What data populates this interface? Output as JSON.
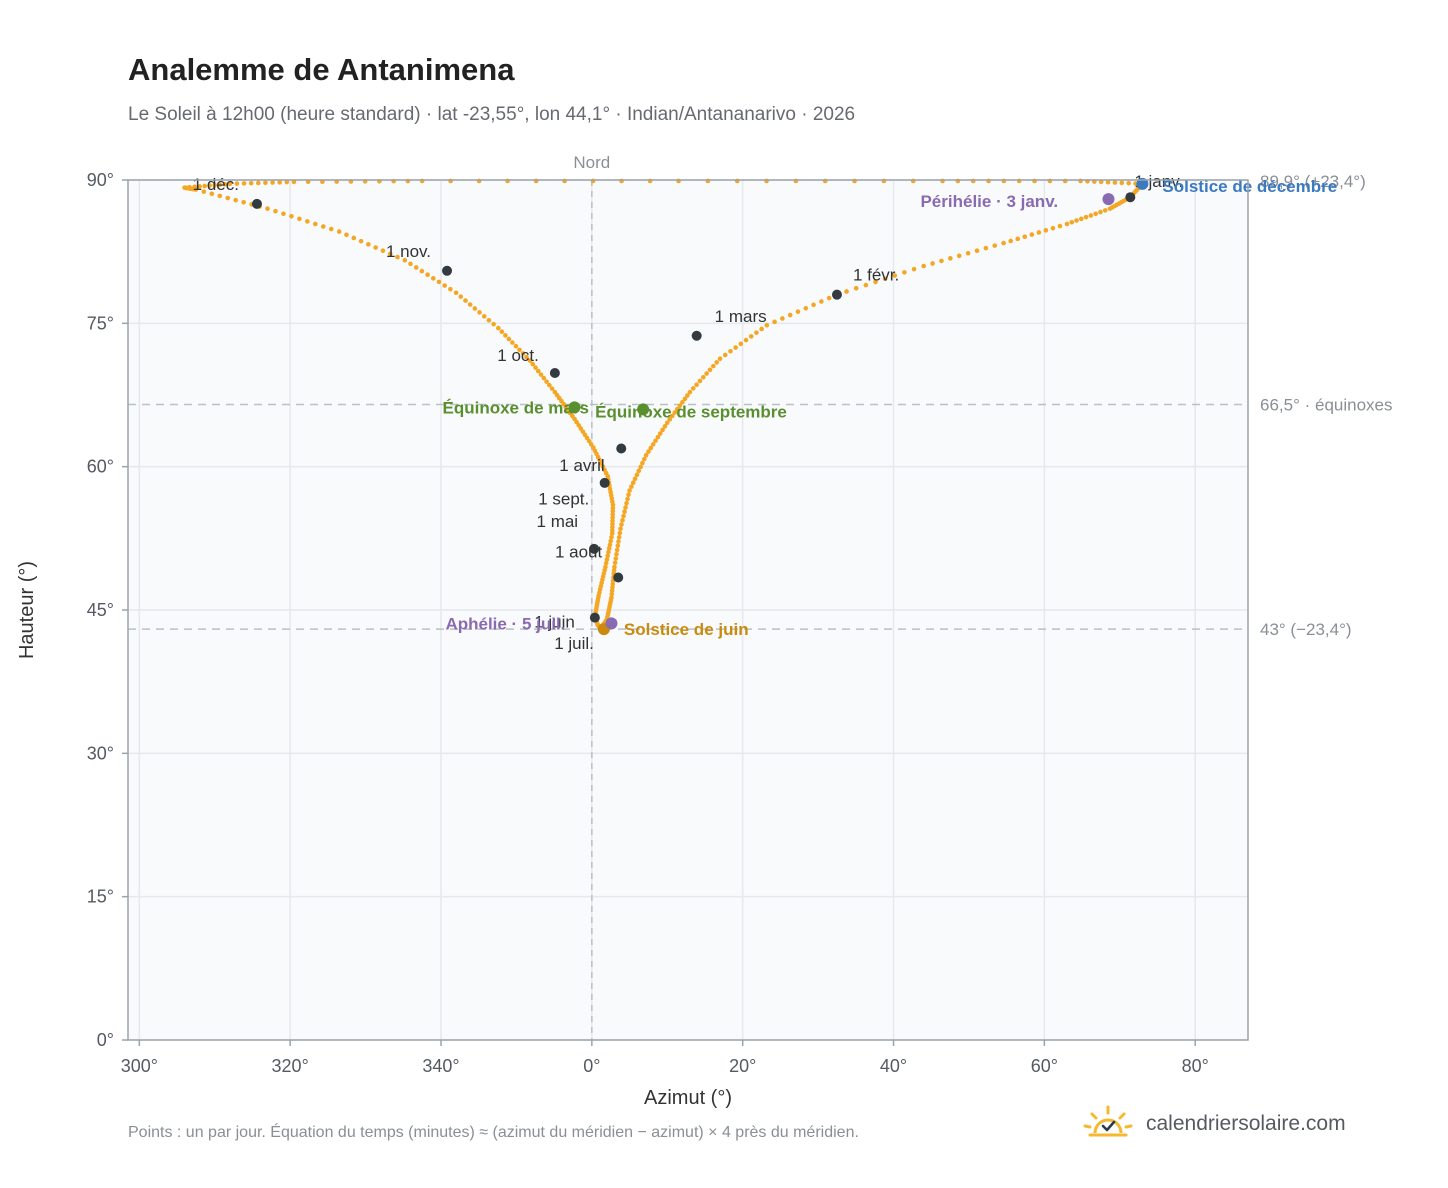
{
  "header": {
    "title": "Analemme de Antanimena",
    "subtitle": "Le Soleil à 12h00 (heure standard) · lat -23,55°, lon 44,1° · Indian/Antananarivo · 2026"
  },
  "footer": {
    "note": "Points : un par jour. Équation du temps (minutes) ≈ (azimut du méridien − azimut) × 4 près du méridien.",
    "brand": "calendriersolaire.com",
    "brand_icon": "sun-logo-icon"
  },
  "colors": {
    "curve": "#f5a623",
    "month_dot": "#333a40",
    "equinox": "#5a8f2e",
    "solstice_june": "#c98a0e",
    "solstice_dec": "#3b7ac0",
    "apsis": "#8a6ab0",
    "grid": "#e5e8ec",
    "plot_bg": "#f8fafc",
    "axis": "#9aa3ad",
    "reference": "#b8c0c8"
  },
  "chart_data": {
    "type": "scatter",
    "title": "Analemme de Antanimena",
    "xlabel": "Azimut (°)",
    "ylabel": "Hauteur (°)",
    "x_ticks": [
      "300°",
      "320°",
      "340°",
      "0°",
      "20°",
      "40°",
      "60°",
      "80°"
    ],
    "y_ticks": [
      "0°",
      "15°",
      "30°",
      "45°",
      "60°",
      "75°",
      "90°"
    ],
    "x_tick_values": [
      300,
      320,
      340,
      360,
      380,
      400,
      420,
      440
    ],
    "y_tick_values": [
      0,
      15,
      30,
      45,
      60,
      75,
      90
    ],
    "xlim": [
      298.5,
      447
    ],
    "ylim": [
      0,
      90
    ],
    "grid": true,
    "north_line": {
      "azimuth": 360,
      "label": "Nord"
    },
    "reference_lines": [
      {
        "altitude": 66.5,
        "label": "66,5° · équinoxes"
      },
      {
        "altitude": 43.0,
        "label": "43° (−23,4°)"
      },
      {
        "altitude": 89.9,
        "label": "89,9° (+23,4°)"
      }
    ],
    "series": [
      {
        "kind": "daily_path",
        "points": [
          [
            433.0,
            89.6
          ],
          [
            431.4,
            88.2
          ],
          [
            428.7,
            87.0
          ],
          [
            423.0,
            85.4
          ],
          [
            414.6,
            83.4
          ],
          [
            404.0,
            81.0
          ],
          [
            392.5,
            78.0
          ],
          [
            383.2,
            74.8
          ],
          [
            377.0,
            71.3
          ],
          [
            373.0,
            67.8
          ],
          [
            370.0,
            64.6
          ],
          [
            367.2,
            61.2
          ],
          [
            365.0,
            57.5
          ],
          [
            363.8,
            53.5
          ],
          [
            363.0,
            49.5
          ],
          [
            362.6,
            46.3
          ],
          [
            362.0,
            44.0
          ],
          [
            361.2,
            43.1
          ],
          [
            360.8,
            43.4
          ],
          [
            360.4,
            44.3
          ],
          [
            360.9,
            46.5
          ],
          [
            361.8,
            49.5
          ],
          [
            362.7,
            53.0
          ],
          [
            362.8,
            56.0
          ],
          [
            362.1,
            59.0
          ],
          [
            360.2,
            62.0
          ],
          [
            357.7,
            65.0
          ],
          [
            355.1,
            67.8
          ],
          [
            351.8,
            71.1
          ],
          [
            347.6,
            74.5
          ],
          [
            342.0,
            78.2
          ],
          [
            335.2,
            81.6
          ],
          [
            326.5,
            84.6
          ],
          [
            317.0,
            87.0
          ],
          [
            307.5,
            89.0
          ],
          [
            306.0,
            89.2
          ],
          [
            312.0,
            89.6
          ],
          [
            320.5,
            89.8
          ],
          [
            337.5,
            89.9
          ],
          [
            371.5,
            89.9
          ],
          [
            406.5,
            89.9
          ],
          [
            424.8,
            89.9
          ],
          [
            433.0,
            89.6
          ]
        ]
      }
    ],
    "month_markers": [
      {
        "label": "1 janv.",
        "azimuth": 431.4,
        "altitude": 88.2
      },
      {
        "label": "1 févr.",
        "azimuth": 392.5,
        "altitude": 78.0
      },
      {
        "label": "1 mars",
        "azimuth": 373.9,
        "altitude": 73.7
      },
      {
        "label": "1 avril",
        "azimuth": 361.7,
        "altitude": 58.3
      },
      {
        "label": "1 mai",
        "azimuth": 360.3,
        "altitude": 51.4
      },
      {
        "label": "1 juin",
        "azimuth": 360.4,
        "altitude": 44.2
      },
      {
        "label": "1 juil.",
        "azimuth": 361.6,
        "altitude": 43.0
      },
      {
        "label": "1 août",
        "azimuth": 363.5,
        "altitude": 48.4
      },
      {
        "label": "1 sept.",
        "azimuth": 363.9,
        "altitude": 61.9
      },
      {
        "label": "1 oct.",
        "azimuth": 355.1,
        "altitude": 69.8
      },
      {
        "label": "1 nov.",
        "azimuth": 340.8,
        "altitude": 80.5
      },
      {
        "label": "1 déc.",
        "azimuth": 315.6,
        "altitude": 87.5
      }
    ],
    "events": [
      {
        "label": "Équinoxe de mars",
        "azimuth": 357.7,
        "altitude": 66.2,
        "color_key": "equinox"
      },
      {
        "label": "Équinoxe de septembre",
        "azimuth": 366.8,
        "altitude": 66.0,
        "color_key": "equinox"
      },
      {
        "label": "Solstice de juin",
        "azimuth": 361.6,
        "altitude": 43.0,
        "color_key": "solstice_june"
      },
      {
        "label": "Solstice de décembre",
        "azimuth": 433.0,
        "altitude": 89.6,
        "color_key": "solstice_dec"
      },
      {
        "label": "Aphélie · 5 juil.",
        "azimuth": 362.6,
        "altitude": 43.6,
        "color_key": "apsis"
      },
      {
        "label": "Périhélie · 3 janv.",
        "azimuth": 428.5,
        "altitude": 88.0,
        "color_key": "apsis"
      }
    ]
  }
}
